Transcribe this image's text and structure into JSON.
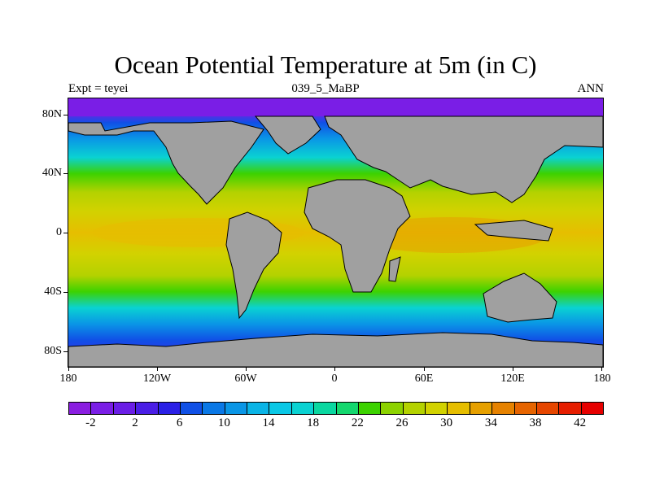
{
  "title": "Ocean Potential Temperature at 5m (in C)",
  "subtitle_left": "Expt = teyei",
  "subtitle_center": "039_5_MaBP",
  "subtitle_right": "ANN",
  "lat_labels": [
    "80N",
    "40N",
    "0",
    "40S",
    "80S"
  ],
  "lon_labels": [
    "180",
    "120W",
    "60W",
    "0",
    "60E",
    "120E",
    "180"
  ],
  "colorbar": {
    "labels": [
      "-2",
      "2",
      "6",
      "10",
      "14",
      "18",
      "22",
      "26",
      "30",
      "34",
      "38",
      "42"
    ],
    "colors": [
      "#8a1ee0",
      "#7a1ee6",
      "#6a1ee6",
      "#4a1ee6",
      "#2a20e6",
      "#1050e6",
      "#0a78e6",
      "#0a96e6",
      "#0ab4e6",
      "#0ac8e6",
      "#0ad2d2",
      "#0ad7a0",
      "#14d76e",
      "#3cd200",
      "#8cd200",
      "#b4d200",
      "#d2d200",
      "#e6be00",
      "#e6a000",
      "#e68200",
      "#e66400",
      "#e64600",
      "#e61e00",
      "#e60000"
    ]
  },
  "land_color": "#a0a0a0",
  "dominant_ocean_colors": {
    "polar": "#7a1ee6",
    "subpolar": "#0a78e6",
    "mid_lat": "#3cd200",
    "subtropical": "#d2d200",
    "tropical": "#e6be00"
  }
}
